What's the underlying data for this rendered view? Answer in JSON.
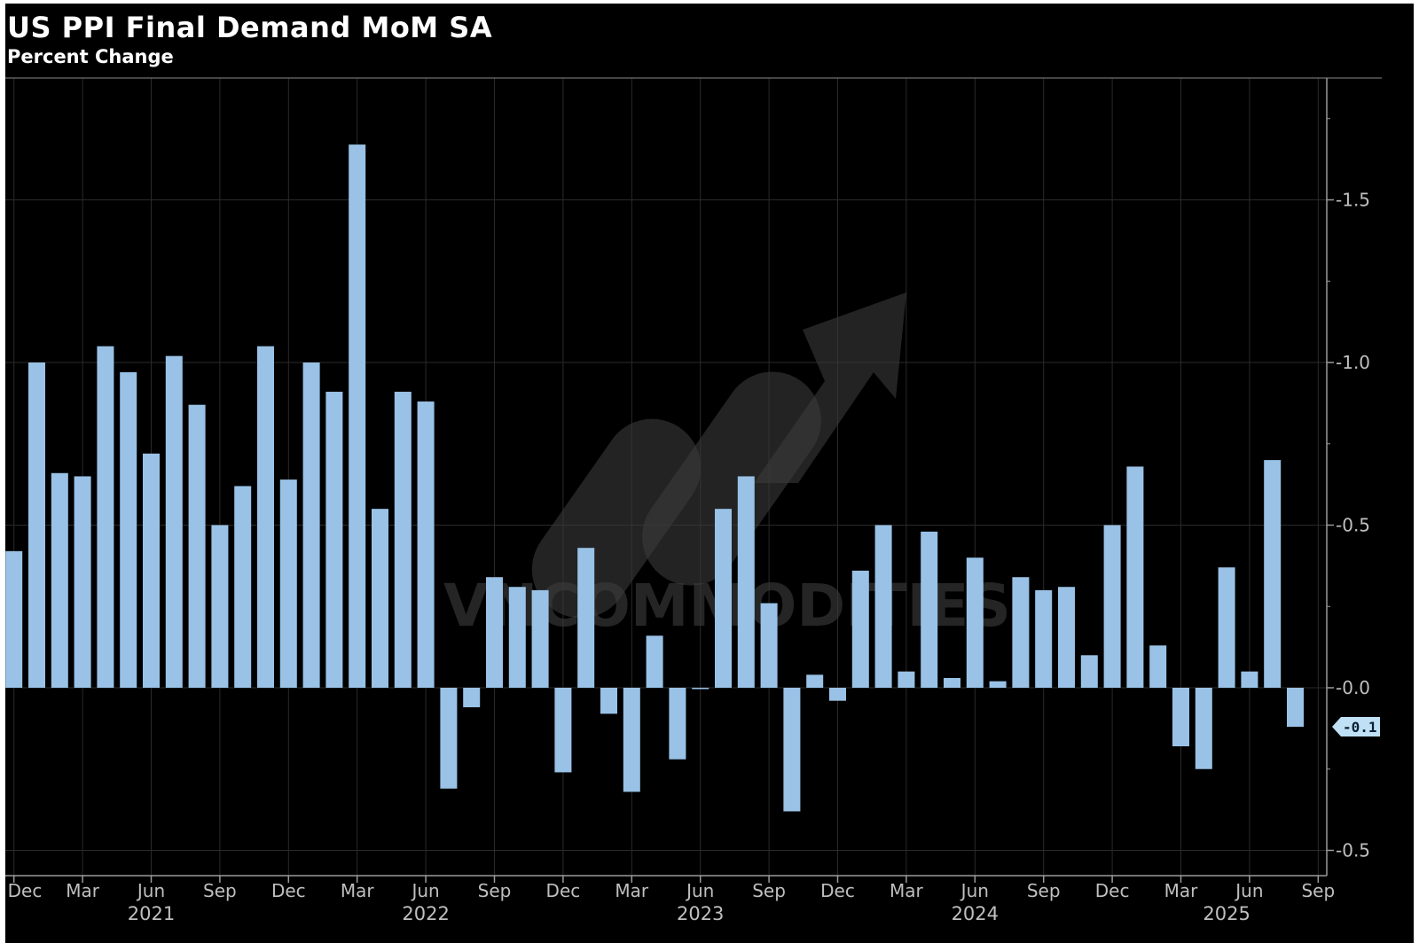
{
  "chart_data": {
    "type": "bar",
    "title": "US PPI Final Demand MoM SA",
    "subtitle": "Percent Change",
    "xlabel": "",
    "ylabel": "",
    "ylim": [
      -0.55,
      1.85
    ],
    "yticks": [
      -0.5,
      0.0,
      0.5,
      1.0,
      1.5
    ],
    "ytick_labels": [
      "-0.5",
      "0.0",
      "0.5",
      "1.0",
      "1.5"
    ],
    "grid": true,
    "bar_color": "#99c2e6",
    "background": "#000000",
    "series": [
      {
        "name": "US PPI Final Demand MoM SA",
        "values": [
          0.42,
          1.0,
          0.66,
          0.65,
          1.05,
          0.97,
          0.72,
          1.02,
          0.87,
          0.5,
          0.62,
          1.05,
          0.64,
          1.0,
          0.91,
          1.67,
          0.55,
          0.91,
          0.88,
          -0.31,
          -0.06,
          0.34,
          0.31,
          0.3,
          -0.26,
          0.43,
          -0.08,
          -0.32,
          0.16,
          -0.22,
          0.0,
          0.55,
          0.65,
          0.26,
          -0.38,
          0.04,
          -0.04,
          0.36,
          0.5,
          0.05,
          0.48,
          0.03,
          0.4,
          0.02,
          0.34,
          0.3,
          0.31,
          0.1,
          0.5,
          0.68,
          0.13,
          -0.18,
          -0.25,
          0.37,
          0.05,
          0.7,
          -0.12
        ]
      }
    ],
    "month_ticks": [
      "Dec",
      "Mar",
      "Jun",
      "Sep",
      "Dec",
      "Mar",
      "Jun",
      "Sep",
      "Dec",
      "Mar",
      "Jun",
      "Sep",
      "Dec",
      "Mar",
      "Jun",
      "Sep",
      "Dec",
      "Mar",
      "Jun",
      "Sep"
    ],
    "year_labels": [
      "2021",
      "2022",
      "2023",
      "2024",
      "2025"
    ],
    "last_value_label": "-0.1",
    "watermark": "VNCOMMODITIES"
  }
}
